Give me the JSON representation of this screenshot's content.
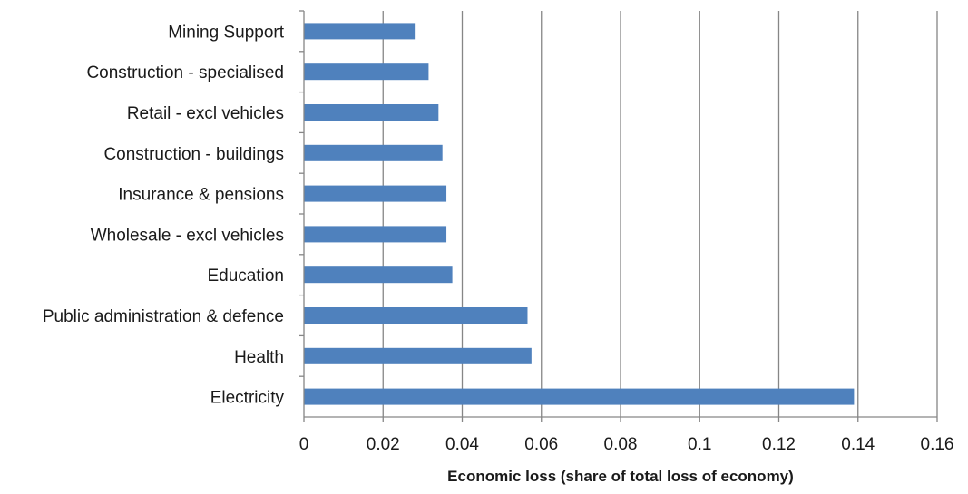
{
  "chart_data": {
    "type": "bar",
    "orientation": "horizontal",
    "title": "",
    "xlabel": "Economic loss (share of total loss of economy)",
    "ylabel": "",
    "categories": [
      "Mining Support",
      "Construction - specialised",
      "Retail - excl vehicles",
      "Construction - buildings",
      "Insurance & pensions",
      "Wholesale - excl vehicles",
      "Education",
      "Public administration & defence",
      "Health",
      "Electricity"
    ],
    "values": [
      0.028,
      0.0315,
      0.034,
      0.035,
      0.036,
      0.036,
      0.0375,
      0.0565,
      0.0575,
      0.139
    ],
    "xlim": [
      0,
      0.16
    ],
    "xticks": [
      0,
      0.02,
      0.04,
      0.06,
      0.08,
      0.1,
      0.12,
      0.14,
      0.16
    ],
    "xtick_labels": [
      "0",
      "0.02",
      "0.04",
      "0.06",
      "0.08",
      "0.1",
      "0.12",
      "0.14",
      "0.16"
    ],
    "grid": "vertical",
    "legend": "none",
    "bar_color": "#4f81bd",
    "grid_color": "#868686"
  }
}
